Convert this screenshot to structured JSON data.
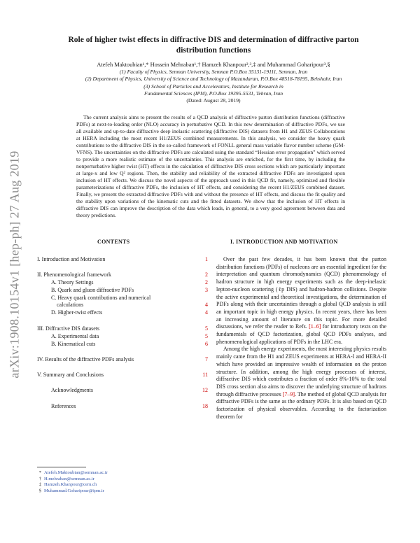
{
  "arxiv_stamp": "arXiv:1908.10154v1  [hep-ph]  27 Aug 2019",
  "title_line1": "Role of higher twist effects in diffractive DIS and determination of diffractive parton",
  "title_line2": "distribution functions",
  "authors": "Atefeh Maktoubian¹,* Hossein Mehraban¹,† Hamzeh Khanpour²,³,‡ and Muhammad Goharipour³,§",
  "affiliations": [
    "(1) Faculty of Physics, Semnan University, Semnan P.O.Box 35131-19111, Semnan, Iran",
    "(2) Department of Physics, University of Science and Technology of Mazandaran, P.O.Box 48518-78195, Behshahr, Iran",
    "(3) School of Particles and Accelerators, Institute for Research in",
    "Fundamental Sciences (IPM), P.O.Box 19395-5531, Tehran, Iran"
  ],
  "dated": "(Dated: August 28, 2019)",
  "abstract": "The current analysis aims to present the results of a QCD analysis of diffractive parton distribution functions (diffractive PDFs) at next-to-leading order (NLO) accuracy in perturbative QCD. In this new determination of diffractive PDFs, we use all available and up-to-date diffractive deep inelastic scattering (diffractive DIS) datasets from H1 and ZEUS Collaborations at HERA including the most recent H1/ZEUS combined measurements. In this analysis, we consider the heavy quark contributions to the diffractive DIS in the so-called framework of FONLL general mass variable flavor number scheme (GM-VFNS). The uncertainties on the diffractive PDFs are calculated using the standard “Hessian error propagation” which served to provide a more realistic estimate of the uncertainties. This analysis are enriched, for the first time, by including the nonperturbative higher twist (HT) effects in the calculation of diffractive DIS cross sections which are particularly important at large-x and low Q² regions. Then, the stability and reliability of the extracted diffractive PDFs are investigated upon inclusion of HT effects. We discuss the novel aspects of the approach used in this QCD fit, namely, optimized and flexible parameterizations of diffractive PDFs, the inclusion of HT effects, and considering the recent H1/ZEUS combined dataset. Finally, we present the extracted diffractive PDFs with and without the presence of HT effects, and discuss the fit quality and the stability upon variations of the kinematic cuts and the fitted datasets. We show that the inclusion of HT effects in diffractive DIS can improve the description of the data which leads, in general, to a very good agreement between data and theory predictions.",
  "contents_heading": "CONTENTS",
  "toc": [
    {
      "label": "I.  Introduction and Motivation",
      "page": "1",
      "sub": false
    },
    {
      "label": "II.  Phenomenological framework",
      "page": "2",
      "sub": false
    },
    {
      "label": "A. Theory Settings",
      "page": "2",
      "sub": true
    },
    {
      "label": "B. Quark and gluon diffractive PDFs",
      "page": "3",
      "sub": true
    },
    {
      "label": "C. Heavy quark contributions and numerical",
      "page": "",
      "sub": true
    },
    {
      "label": "    calculations",
      "page": "4",
      "sub": true
    },
    {
      "label": "D. Higher-twist effects",
      "page": "4",
      "sub": true
    },
    {
      "label": "III.  Diffractive DIS datasets",
      "page": "5",
      "sub": false
    },
    {
      "label": "A. Experimental data",
      "page": "5",
      "sub": true
    },
    {
      "label": "B. Kinematical cuts",
      "page": "6",
      "sub": true
    },
    {
      "label": "IV.  Results of the diffractive PDFs analysis",
      "page": "7",
      "sub": false
    },
    {
      "label": "V.  Summary and Conclusions",
      "page": "11",
      "sub": false
    },
    {
      "label": "Acknowledgments",
      "page": "12",
      "sub": true
    },
    {
      "label": "References",
      "page": "18",
      "sub": true
    }
  ],
  "intro_heading": "I.   INTRODUCTION AND MOTIVATION",
  "intro_p1": "Over the past few decades, it has been known that the parton distribution functions (PDFs) of nucleons are an essential ingredient for the interpretation and quantum chromodynamics (QCD) phenomenology of hadron structure in high energy experiments such as the deep-inelastic lepton-nucleon scattering (ℓp DIS) and hadron-hadron collisions. Despite the active experimental and theoretical investigations, the determination of PDFs along with their uncertainties through a global QCD analysis is still an important topic in high energy physics. In recent years, there has been an increasing amount of literature on this topic. For more detailed discussions, we refer the reader to Refs.",
  "intro_p1_cite": "[1–6]",
  "intro_p1_tail": " for introductory texts on the fundamentals of QCD factorization, global QCD PDFs analyses, and phenomenological applications of PDFs in the LHC era.",
  "intro_p2": "Among the high energy experiments, the most interesting physics results mainly came from the H1 and ZEUS experiments at HERA-I and HERA-II which have provided an impressive wealth of information on the proton structure. In addition, among the high energy processes of interest, diffractive DIS which contributes a fraction of order 8%-10% to the total DIS cross section also aims to discover the underlying structure of hadrons through diffractive processes",
  "intro_p2_cite": "[7–9]",
  "intro_p2_tail": ". The method of global QCD analysis for diffractive PDFs is the same as the ordinary PDFs. It is also based on QCD factorization of physical observables. According to the factorization theorem for",
  "footnotes": [
    {
      "mark": "*",
      "text": "Atefeh.Maktoubian@semnan.ac.ir"
    },
    {
      "mark": "†",
      "text": "H.mehraban@semnan.ac.ir"
    },
    {
      "mark": "‡",
      "text": "Hamzeh.Khanpour@cern.ch"
    },
    {
      "mark": "§",
      "text": "Muhammad.Goharipour@ipm.ir"
    }
  ]
}
